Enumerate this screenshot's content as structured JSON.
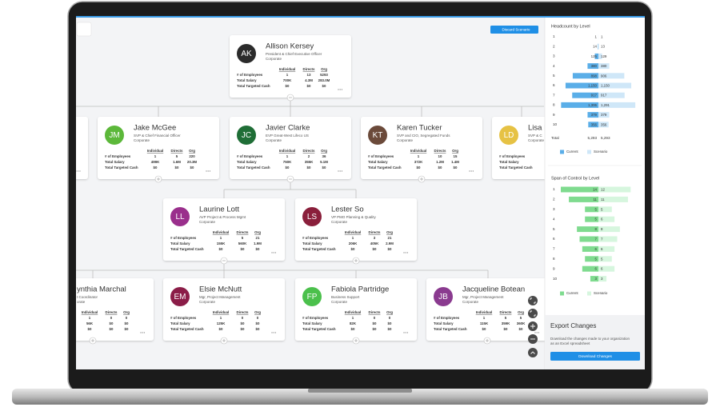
{
  "toolbar": {
    "discard_button": "Discard Scenario"
  },
  "cards": [
    {
      "initials": "AK",
      "name": "Allison Kersey",
      "title": "President & Chief Executive Officer",
      "department": "Corporate",
      "columns": [
        "Individual",
        "Directs",
        "Org"
      ],
      "rows": [
        {
          "label": "# of Employees",
          "values": [
            "1",
            "13",
            "5293"
          ]
        },
        {
          "label": "Total Salary",
          "values": [
            "700K",
            "4.3M",
            "283.0M"
          ]
        },
        {
          "label": "Total Targeted Cash",
          "values": [
            "$0",
            "$0",
            "$0"
          ]
        }
      ]
    },
    {
      "initials": "JM",
      "name": "Jake McGee",
      "title": "SVP & Chief Financial Officer",
      "department": "Corporate",
      "columns": [
        "Individual",
        "Directs",
        "Org"
      ],
      "rows": [
        {
          "label": "# of Employees",
          "values": [
            "1",
            "5",
            "220"
          ]
        },
        {
          "label": "Total Salary",
          "values": [
            "499K",
            "1.6M",
            "20.3M"
          ]
        },
        {
          "label": "Total Targeted Cash",
          "values": [
            "$0",
            "$0",
            "$0"
          ]
        }
      ]
    },
    {
      "initials": "JC",
      "name": "Javier Clarke",
      "title": "EVP Great-West Lifeco US",
      "department": "Corporate",
      "columns": [
        "Individual",
        "Directs",
        "Org"
      ],
      "rows": [
        {
          "label": "# of Employees",
          "values": [
            "1",
            "2",
            "36"
          ]
        },
        {
          "label": "Total Salary",
          "values": [
            "750K",
            "355K",
            "5.1M"
          ]
        },
        {
          "label": "Total Targeted Cash",
          "values": [
            "$0",
            "$0",
            "$0"
          ]
        }
      ]
    },
    {
      "initials": "KT",
      "name": "Karen Tucker",
      "title": "SVP and CIO, Segregated Funds",
      "department": "Corporate",
      "columns": [
        "Individual",
        "Directs",
        "Org"
      ],
      "rows": [
        {
          "label": "# of Employees",
          "values": [
            "1",
            "10",
            "15"
          ]
        },
        {
          "label": "Total Salary",
          "values": [
            "372K",
            "1.2M",
            "1.4M"
          ]
        },
        {
          "label": "Total Targeted Cash",
          "values": [
            "$0",
            "$0",
            "$0"
          ]
        }
      ]
    },
    {
      "initials": "LD",
      "name": "Lisa L",
      "title": "SVP & C",
      "department": "Corporate",
      "columns": [],
      "rows": [
        {
          "label": "# of Employees",
          "values": []
        },
        {
          "label": "Total Salary",
          "values": []
        },
        {
          "label": "Total Targeted Cash",
          "values": []
        }
      ]
    },
    {
      "initials": "LL",
      "name": "Laurine Lott",
      "title": "AVP Project & Process Mgmt",
      "department": "Corporate",
      "columns": [
        "Individual",
        "Directs",
        "Org"
      ],
      "rows": [
        {
          "label": "# of Employees",
          "values": [
            "1",
            "5",
            "21"
          ]
        },
        {
          "label": "Total Salary",
          "values": [
            "155K",
            "560K",
            "1.9M"
          ]
        },
        {
          "label": "Total Targeted Cash",
          "values": [
            "$0",
            "$0",
            "$0"
          ]
        }
      ]
    },
    {
      "initials": "LS",
      "name": "Lester So",
      "title": "VP PMO Planning & Quality",
      "department": "Corporate",
      "columns": [
        "Individual",
        "Directs",
        "Org"
      ],
      "rows": [
        {
          "label": "# of Employees",
          "values": [
            "1",
            "3",
            "21"
          ]
        },
        {
          "label": "Total Salary",
          "values": [
            "206K",
            "405K",
            "2.9M"
          ]
        },
        {
          "label": "Total Targeted Cash",
          "values": [
            "$0",
            "$0",
            "$0"
          ]
        }
      ]
    },
    {
      "name": "ynthia Marchal",
      "title": "t Coordinator",
      "department": "orate",
      "columns": [
        "Individual",
        "Directs",
        "Org"
      ],
      "rows": [
        {
          "values": [
            "1",
            "0",
            "0"
          ]
        },
        {
          "values": [
            "56K",
            "$0",
            "$0"
          ]
        },
        {
          "values": [
            "$0",
            "$0",
            "$0"
          ]
        }
      ]
    },
    {
      "initials": "EM",
      "name": "Elsie McNutt",
      "title": "Mgr, Project Management",
      "department": "Corporate",
      "columns": [
        "Individual",
        "Directs",
        "Org"
      ],
      "rows": [
        {
          "label": "# of Employees",
          "values": [
            "1",
            "0",
            "0"
          ]
        },
        {
          "label": "Total Salary",
          "values": [
            "125K",
            "$0",
            "$0"
          ]
        },
        {
          "label": "Total Targeted Cash",
          "values": [
            "$0",
            "$0",
            "$0"
          ]
        }
      ]
    },
    {
      "initials": "FP",
      "name": "Fabiola Partridge",
      "title": "Business Support",
      "department": "Corporate",
      "columns": [
        "Individual",
        "Directs",
        "Org"
      ],
      "rows": [
        {
          "label": "# of Employees",
          "values": [
            "1",
            "0",
            "0"
          ]
        },
        {
          "label": "Total Salary",
          "values": [
            "82K",
            "$0",
            "$0"
          ]
        },
        {
          "label": "Total Targeted Cash",
          "values": [
            "$0",
            "$0",
            "$0"
          ]
        }
      ]
    },
    {
      "initials": "JB",
      "name": "Jacqueline Botean",
      "title": "Mgr, Project Management",
      "department": "Corporate",
      "columns": [
        "Individual",
        "Directs",
        "Org"
      ],
      "rows": [
        {
          "label": "# of Employees",
          "values": [
            "1",
            "5",
            "5"
          ]
        },
        {
          "label": "Total Salary",
          "values": [
            "115K",
            "359K",
            "360K"
          ]
        },
        {
          "label": "Total Targeted Cash",
          "values": [
            "$0",
            "$0",
            "$0"
          ]
        }
      ]
    }
  ],
  "sidebar": {
    "headcount": {
      "title": "Headcount by Level",
      "levels": [
        1,
        2,
        3,
        4,
        5,
        6,
        7,
        8,
        9,
        10
      ],
      "current": [
        1,
        14,
        125,
        380,
        898,
        {
          "value": 1150,
          "label": "1,150"
        },
        917,
        {
          "value": 1306,
          "label": "1,306"
        },
        379,
        356
      ],
      "scenario": [
        1,
        13,
        129,
        380,
        906,
        {
          "value": 1150,
          "label": "1,150"
        },
        917,
        {
          "value": 1291,
          "label": "1,291"
        },
        379,
        356
      ],
      "total_label": "Total",
      "total_current": {
        "value": 5293,
        "label": "5,293"
      },
      "total_scenario": {
        "value": 5293,
        "label": "5,293"
      },
      "legend": [
        "Current",
        "Scenario"
      ],
      "colors": [
        "#5aaee8",
        "#cfe7f8"
      ]
    },
    "span": {
      "title": "Span of Control by Level",
      "levels": [
        1,
        2,
        3,
        4,
        5,
        6,
        7,
        8,
        9,
        10
      ],
      "current": [
        14,
        11,
        5,
        5,
        8,
        7,
        6,
        5,
        6,
        3
      ],
      "scenario": [
        12,
        11,
        5,
        6,
        8,
        7,
        6,
        5,
        6,
        3
      ],
      "legend": [
        "Current",
        "Scenario"
      ],
      "colors": [
        "#7fdb8f",
        "#d6f6de"
      ]
    },
    "export": {
      "title": "Export Changes",
      "text": [
        "Download the changes made to your organization",
        "as an Excel spreadsheet"
      ],
      "button": "Download Changes"
    }
  }
}
